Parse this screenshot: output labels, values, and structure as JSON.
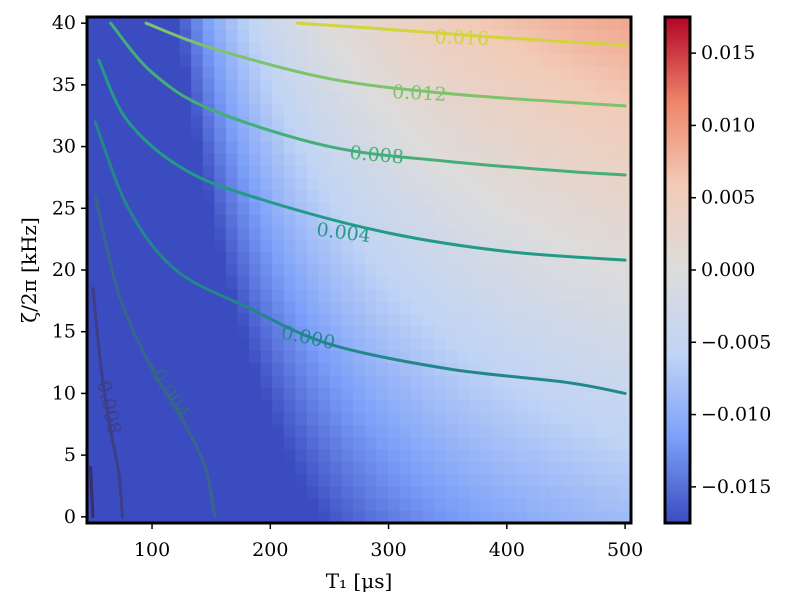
{
  "chart_data": {
    "type": "heatmap",
    "title": "",
    "xlabel": "T₁ [μs]",
    "ylabel": "ζ/2π [kHz]",
    "xlim": [
      45,
      505
    ],
    "ylim": [
      -0.5,
      40.5
    ],
    "xticks": [
      {
        "value": 100,
        "label": "100"
      },
      {
        "value": 200,
        "label": "200"
      },
      {
        "value": 300,
        "label": "300"
      },
      {
        "value": 400,
        "label": "400"
      },
      {
        "value": 500,
        "label": "500"
      }
    ],
    "yticks": [
      {
        "value": 0,
        "label": "0"
      },
      {
        "value": 5,
        "label": "5"
      },
      {
        "value": 10,
        "label": "10"
      },
      {
        "value": 15,
        "label": "15"
      },
      {
        "value": 20,
        "label": "20"
      },
      {
        "value": 25,
        "label": "25"
      },
      {
        "value": 30,
        "label": "30"
      },
      {
        "value": 35,
        "label": "35"
      },
      {
        "value": 40,
        "label": "40"
      }
    ],
    "colorbar": {
      "colormap": "coolwarm",
      "range": [
        -0.0175,
        0.0175
      ],
      "colors": [
        "#3b4cc0",
        "#7b9ff9",
        "#c0d4f5",
        "#dddcdc",
        "#f2cbb7",
        "#ee8468",
        "#b40426"
      ],
      "ticks": [
        {
          "value": 0.015,
          "label": "0.015"
        },
        {
          "value": 0.01,
          "label": "0.010"
        },
        {
          "value": 0.005,
          "label": "0.005"
        },
        {
          "value": 0.0,
          "label": "0.000"
        },
        {
          "value": -0.005,
          "label": "−0.005"
        },
        {
          "value": -0.01,
          "label": "−0.010"
        },
        {
          "value": -0.015,
          "label": "−0.015"
        }
      ]
    },
    "contours": [
      {
        "level": -0.012,
        "label": "",
        "color": "#3a2d6b",
        "points": [
          [
            48,
            4
          ],
          [
            50,
            0
          ]
        ],
        "label_at": null
      },
      {
        "level": -0.008,
        "label": "−0.008",
        "color": "#3e3d86",
        "points": [
          [
            50,
            18.5
          ],
          [
            57,
            12
          ],
          [
            65,
            7
          ],
          [
            72,
            3.5
          ],
          [
            75,
            0
          ]
        ],
        "label_at": [
          62,
          9.5
        ],
        "label_angle": 78
      },
      {
        "level": -0.004,
        "label": "−0.004",
        "color": "#37668a",
        "points": [
          [
            52,
            26
          ],
          [
            72,
            18
          ],
          [
            100,
            12
          ],
          [
            125,
            8
          ],
          [
            145,
            4
          ],
          [
            153,
            0
          ]
        ],
        "label_at": [
          112,
          10.5
        ],
        "label_angle": 57
      },
      {
        "level": 0.0,
        "label": "0.000",
        "color": "#23878a",
        "points": [
          [
            52,
            32
          ],
          [
            80,
            25
          ],
          [
            120,
            20
          ],
          [
            180,
            17
          ],
          [
            250,
            14
          ],
          [
            350,
            12
          ],
          [
            450,
            10.9
          ],
          [
            500,
            10
          ]
        ],
        "label_at": [
          232,
          14.5
        ],
        "label_angle": 12
      },
      {
        "level": 0.004,
        "label": "0.004",
        "color": "#229a86",
        "points": [
          [
            55,
            37
          ],
          [
            80,
            32
          ],
          [
            130,
            28
          ],
          [
            200,
            25.5
          ],
          [
            300,
            23
          ],
          [
            400,
            21.5
          ],
          [
            500,
            20.8
          ]
        ],
        "label_at": [
          262,
          23
        ],
        "label_angle": 7
      },
      {
        "level": 0.008,
        "label": "0.008",
        "color": "#44ae78",
        "points": [
          [
            65,
            40
          ],
          [
            100,
            36
          ],
          [
            150,
            33
          ],
          [
            250,
            30
          ],
          [
            350,
            28.8
          ],
          [
            450,
            28
          ],
          [
            500,
            27.7
          ]
        ],
        "label_at": [
          290,
          29.3
        ],
        "label_angle": 5
      },
      {
        "level": 0.012,
        "label": "0.012",
        "color": "#7cc36b",
        "points": [
          [
            95,
            40
          ],
          [
            150,
            38
          ],
          [
            250,
            35.5
          ],
          [
            350,
            34.3
          ],
          [
            450,
            33.6
          ],
          [
            500,
            33.3
          ]
        ],
        "label_at": [
          326,
          34.3
        ],
        "label_angle": 3
      },
      {
        "level": 0.016,
        "label": "0.016",
        "color": "#d2d43c",
        "points": [
          [
            223,
            40
          ],
          [
            300,
            39.5
          ],
          [
            400,
            38.8
          ],
          [
            500,
            38.2
          ]
        ],
        "label_at": [
          362,
          38.8
        ],
        "label_angle": 2
      }
    ]
  }
}
